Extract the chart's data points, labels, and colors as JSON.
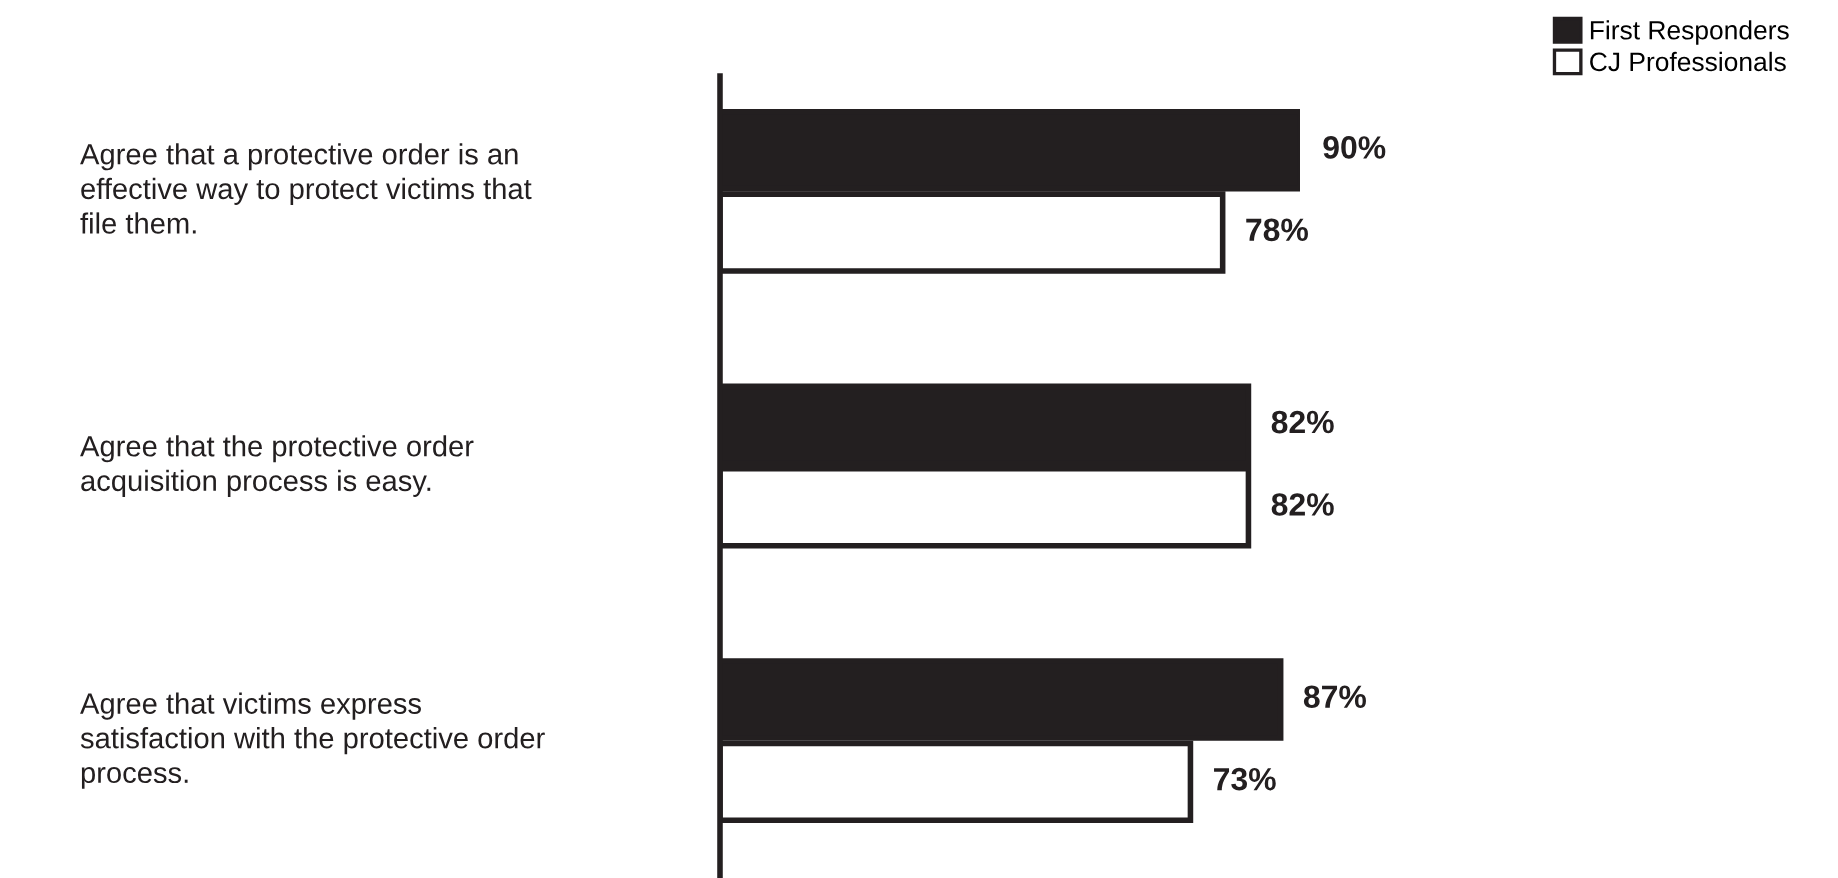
{
  "chart_data": {
    "type": "bar",
    "orientation": "horizontal",
    "categories": [
      "Agree that a protective order is an effective way to protect victims that file them.",
      "Agree that the protective order acquisition process is easy.",
      "Agree that victims express satisfaction with the protective order process."
    ],
    "series": [
      {
        "name": "First Responders",
        "color": "#231f20",
        "values": [
          90,
          82,
          87
        ],
        "value_labels": [
          "90%",
          "82%",
          "87%"
        ]
      },
      {
        "name": "CJ Professionals",
        "color": "#ffffff",
        "values": [
          78,
          82,
          73
        ],
        "value_labels": [
          "78%",
          "82%",
          "73%"
        ]
      }
    ],
    "legend": "top right"
  }
}
